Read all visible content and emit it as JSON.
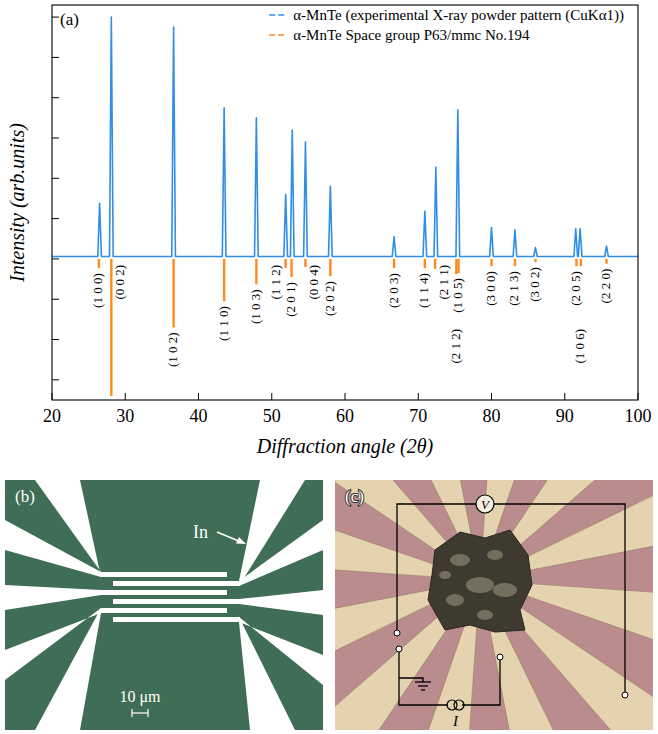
{
  "chart_data": {
    "type": "line",
    "panel": "(a)",
    "xlabel": "Diffraction angle (2θ)",
    "ylabel": "Intensity (arb.units)",
    "xlim": [
      20,
      100
    ],
    "xticks": [
      20,
      30,
      40,
      50,
      60,
      70,
      80,
      90,
      100
    ],
    "ylim": [
      -35,
      63
    ],
    "yticks": [
      -30,
      -20,
      -10,
      0,
      10,
      20,
      30,
      40,
      50,
      60
    ],
    "tick_labels": "x",
    "legend": "upper right",
    "series": [
      {
        "name": "α-MnTe (experimental X-ray powder pattern (CuKα1))",
        "type": "line",
        "color": "#2f8fe8",
        "x": [
          20,
          26.25,
          26.5,
          26.75,
          27.85,
          28.1,
          28.35,
          36.35,
          36.6,
          36.85,
          43.25,
          43.5,
          43.75,
          47.65,
          47.9,
          48.15,
          51.65,
          51.9,
          52.15,
          52.55,
          52.8,
          53.05,
          54.35,
          54.6,
          54.85,
          57.75,
          58.0,
          58.25,
          66.45,
          66.7,
          66.95,
          70.65,
          70.9,
          71.15,
          72.15,
          72.4,
          72.65,
          75.15,
          75.4,
          75.65,
          79.75,
          80.0,
          80.25,
          82.95,
          83.2,
          83.45,
          85.75,
          86.0,
          86.25,
          91.25,
          91.5,
          91.75,
          91.85,
          92.1,
          92.35,
          95.45,
          95.7,
          95.95,
          100
        ],
        "values": [
          0.6,
          0.6,
          13.8,
          0.6,
          0.6,
          60,
          0.6,
          0.6,
          57.5,
          0.6,
          0.6,
          37.5,
          0.6,
          0.6,
          35,
          0.6,
          0.6,
          16,
          0.6,
          0.6,
          32,
          0.6,
          0.6,
          29,
          0.6,
          0.6,
          18,
          0.6,
          0.6,
          5.5,
          0.6,
          0.6,
          11.8,
          0.6,
          0.6,
          22.8,
          0.6,
          0.6,
          37,
          0.6,
          0.6,
          7.8,
          0.6,
          0.6,
          7.2,
          0.6,
          0.6,
          2.8,
          0.6,
          0.6,
          7.5,
          0.6,
          0.6,
          7.5,
          0.6,
          0.6,
          3.2,
          0.6,
          0.6
        ]
      },
      {
        "name": "α-MnTe Space group P63/mmc No.194",
        "type": "stem",
        "color": "#ff8a1f",
        "x": [
          26.4,
          28.1,
          36.6,
          43.5,
          47.9,
          51.9,
          52.7,
          54.6,
          58.0,
          66.7,
          70.9,
          72.3,
          75.2,
          75.5,
          80.0,
          83.2,
          86.0,
          91.6,
          92.2,
          95.7
        ],
        "values": [
          -2.3,
          -34,
          -17,
          -10.5,
          -6.3,
          -2.3,
          -4.5,
          -2,
          -4.3,
          -2.3,
          -2.3,
          -2.5,
          -3.8,
          -3.5,
          -1.8,
          -1.8,
          -0.8,
          -1.8,
          -1.8,
          -1.2
        ],
        "labels": [
          "(1 0 0)",
          "(0 0 2)",
          "(1 0 2)",
          "(1 1 0)",
          "(1 0 3)",
          "(1 1 2)",
          "(2 0 1)",
          "(0 0 4)",
          "(2 0 2)",
          "(2 0 3)",
          "(1 1 4)",
          "(2 1 1)",
          "(2 1 2)",
          "(1 0 5)",
          "(3 0 0)",
          "(2 1 3)",
          "(3 0 2)",
          "(2 0 5)",
          "(1 0 6)",
          "(2 2 0)"
        ]
      }
    ]
  },
  "panels": {
    "b": {
      "label": "(b)",
      "electrode": "In",
      "scale_bar": "10 μm"
    },
    "c": {
      "label": "(c)",
      "voltage": "V",
      "current": "I"
    }
  }
}
